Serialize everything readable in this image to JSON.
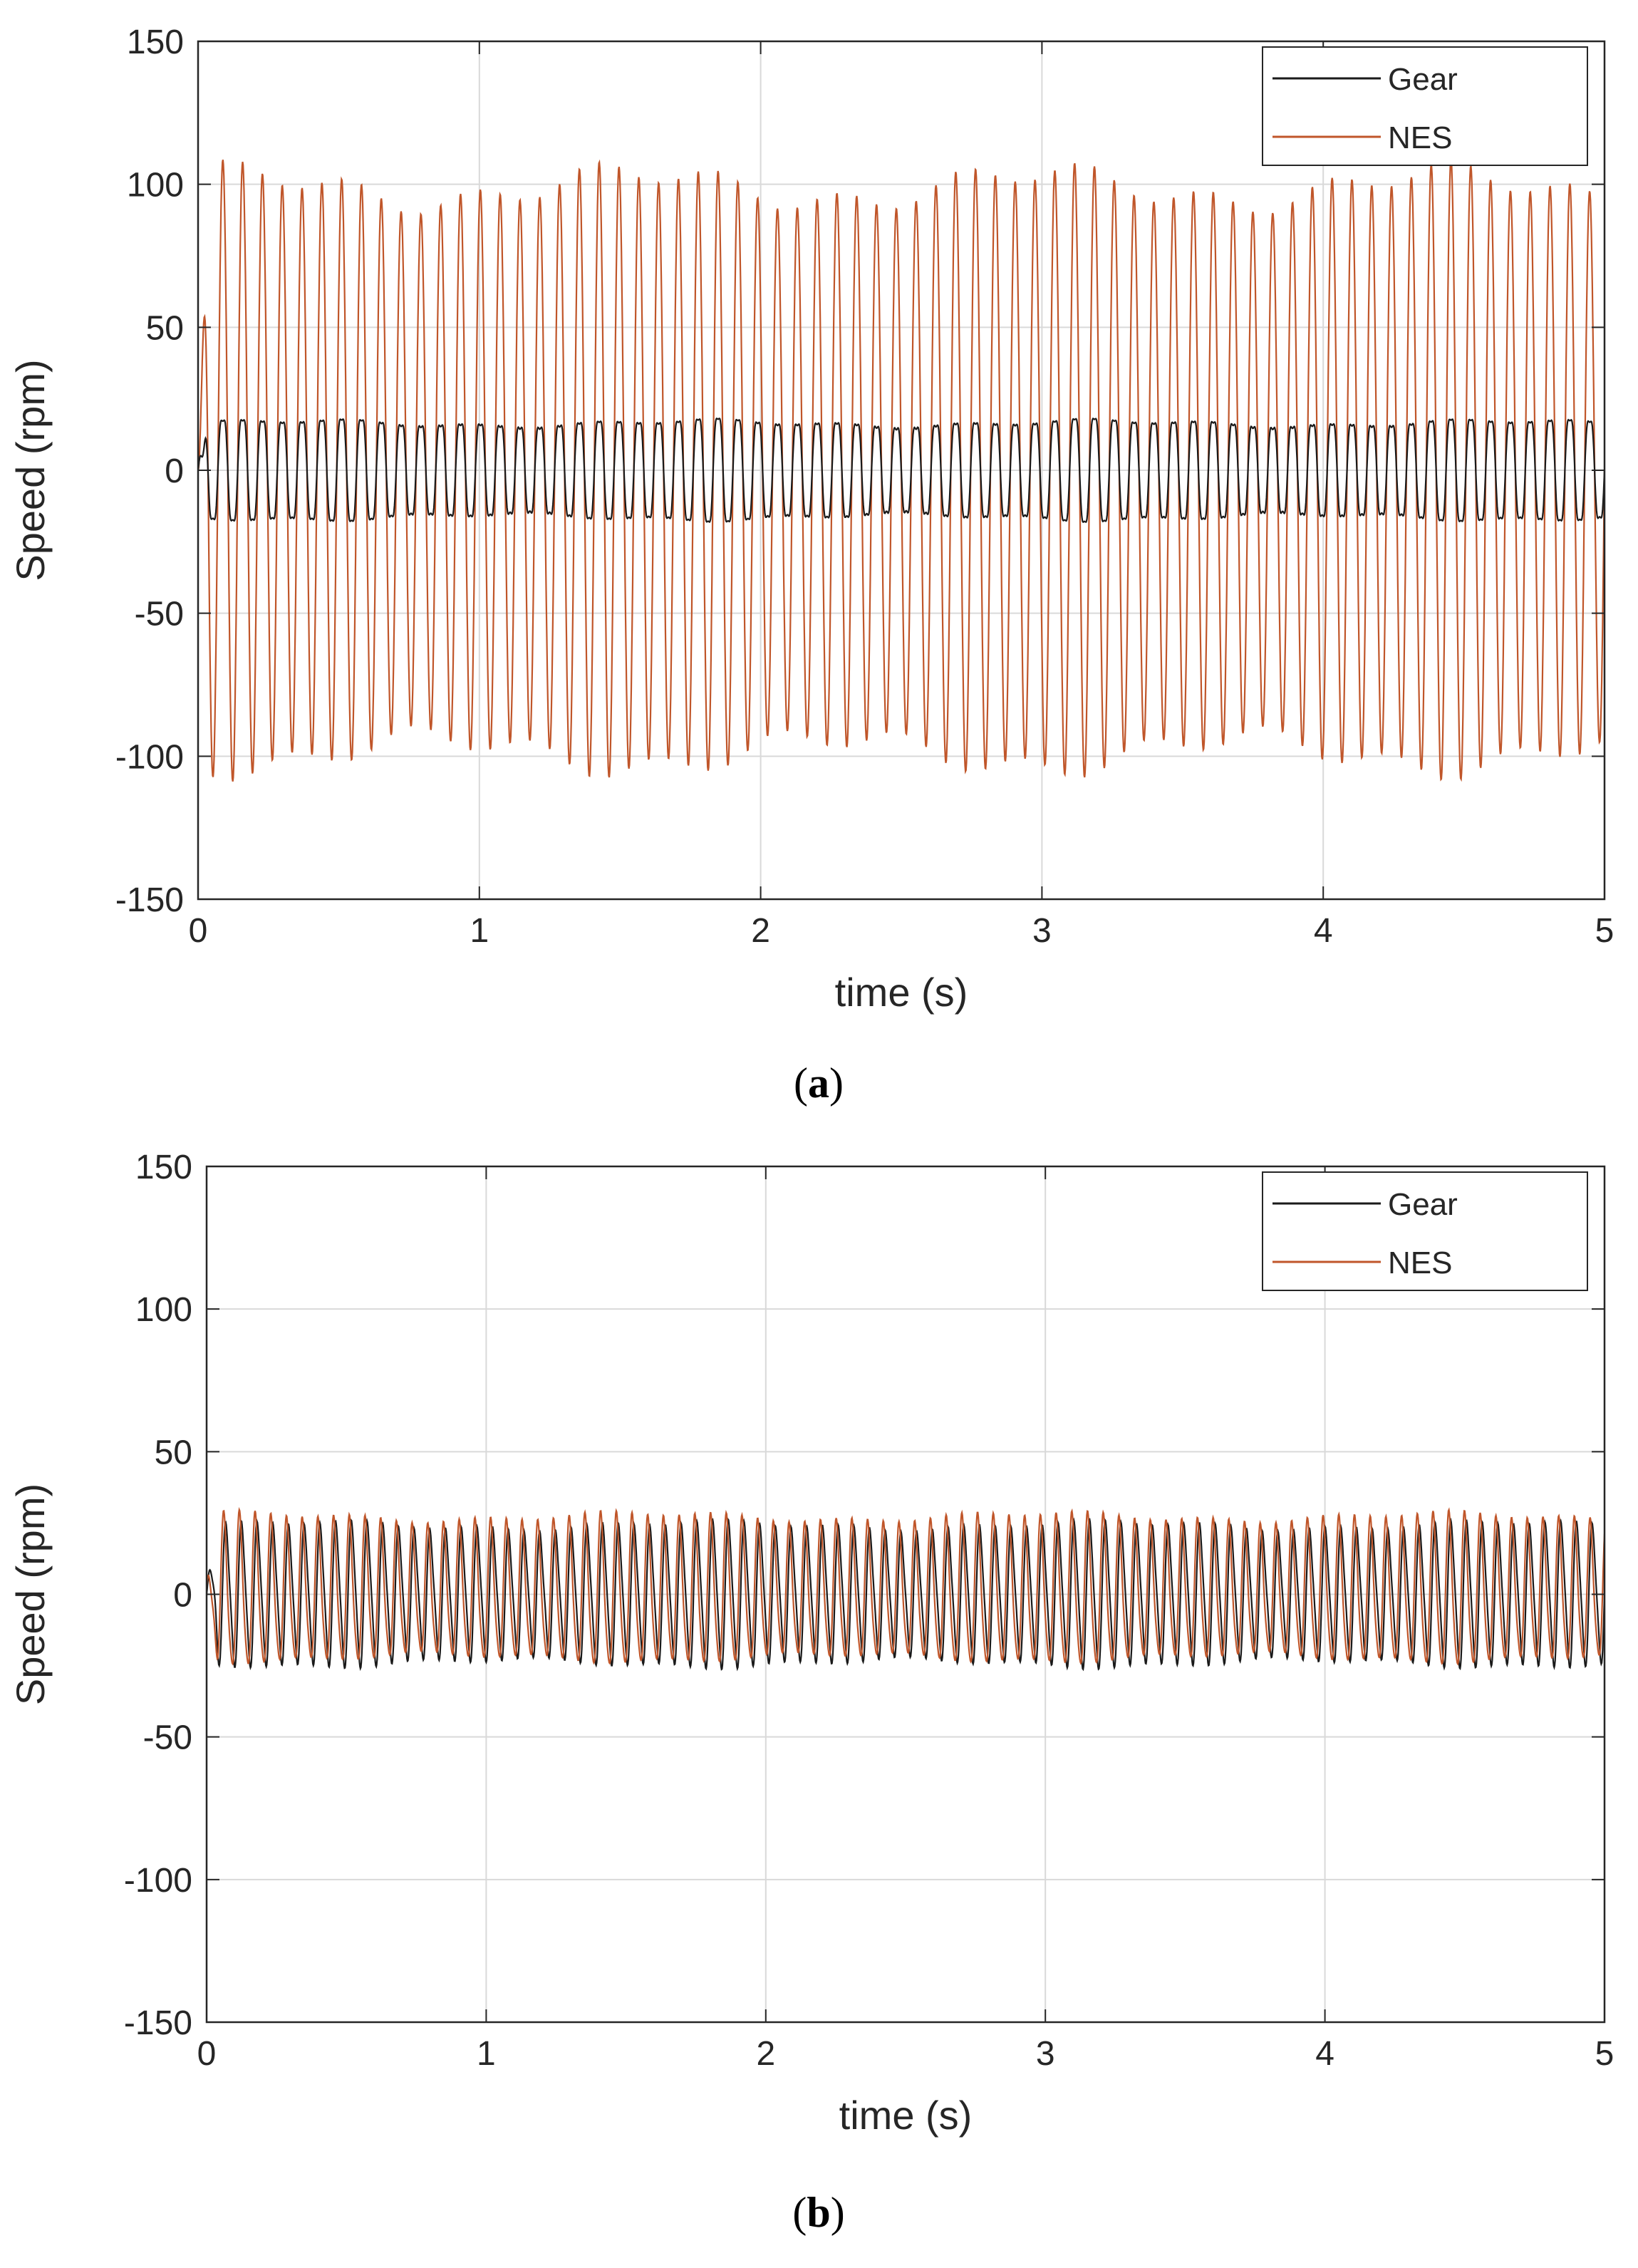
{
  "colors": {
    "gear": "#1a1a1a",
    "nes": "#c0562a",
    "grid": "#d9d9d9",
    "axis": "#262626"
  },
  "chart_data": [
    {
      "type": "line",
      "panel": "a",
      "caption": "a",
      "xlabel": "time (s)",
      "ylabel": "Speed (rpm)",
      "xlim": [
        0,
        5
      ],
      "ylim": [
        -150,
        150
      ],
      "xticks": [
        0,
        1,
        2,
        3,
        4,
        5
      ],
      "yticks": [
        -150,
        -100,
        -50,
        0,
        50,
        100,
        150
      ],
      "xtick_labels": [
        "0",
        "1",
        "2",
        "3",
        "4",
        "5"
      ],
      "ytick_labels": [
        "-150",
        "-100",
        "-50",
        "0",
        "50",
        "100",
        "150"
      ],
      "grid": true,
      "legend_position": "top-right",
      "series": [
        {
          "name": "Gear",
          "color": "#1a1a1a",
          "frequency_hz": 14.2,
          "amplitude_rpm": 19,
          "offset_rpm": 0
        },
        {
          "name": "NES",
          "color": "#c0562a",
          "frequency_hz": 14.2,
          "amplitude_rpm": 99,
          "offset_rpm": 0
        }
      ]
    },
    {
      "type": "line",
      "panel": "b",
      "caption": "b",
      "xlabel": "time (s)",
      "ylabel": "Speed (rpm)",
      "xlim": [
        0,
        5
      ],
      "ylim": [
        -150,
        150
      ],
      "xticks": [
        0,
        1,
        2,
        3,
        4,
        5
      ],
      "yticks": [
        -150,
        -100,
        -50,
        0,
        50,
        100,
        150
      ],
      "xtick_labels": [
        "0",
        "1",
        "2",
        "3",
        "4",
        "5"
      ],
      "ytick_labels": [
        "-150",
        "-100",
        "-50",
        "0",
        "50",
        "100",
        "150"
      ],
      "grid": true,
      "legend_position": "top-right",
      "series": [
        {
          "name": "Gear",
          "color": "#1a1a1a",
          "frequency_hz": 17.8,
          "amplitude_rpm": 23,
          "offset_rpm": 0
        },
        {
          "name": "NES",
          "color": "#c0562a",
          "frequency_hz": 17.8,
          "amplitude_rpm": 24,
          "offset_rpm": 0
        }
      ]
    }
  ]
}
